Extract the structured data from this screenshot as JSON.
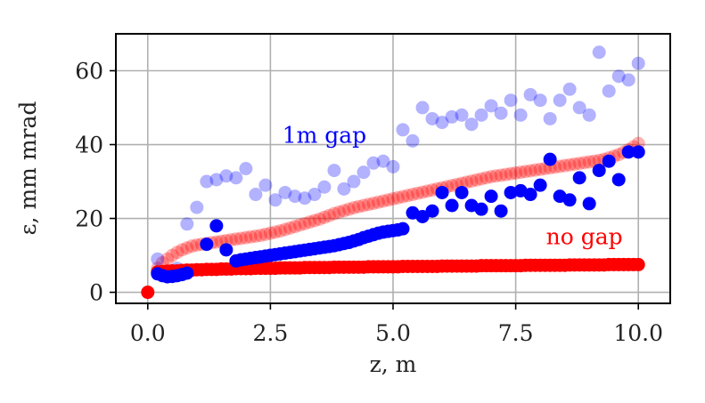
{
  "chart_data": {
    "type": "scatter",
    "title": "",
    "xlabel": "z, m",
    "ylabel": "ε, mm mrad",
    "xlim": [
      -0.65,
      10.65
    ],
    "ylim": [
      -3,
      70
    ],
    "xticks": [
      0.0,
      2.5,
      5.0,
      7.5,
      10.0
    ],
    "xtick_labels": [
      "0.0",
      "2.5",
      "5.0",
      "7.5",
      "10.0"
    ],
    "yticks": [
      0,
      20,
      40,
      60
    ],
    "ytick_labels": [
      "0",
      "20",
      "40",
      "60"
    ],
    "grid": true,
    "annotations": [
      {
        "text": "1m gap",
        "x": 3.6,
        "y": 40.5,
        "color": "#0000ff"
      },
      {
        "text": "no gap",
        "x": 8.9,
        "y": 13,
        "color": "#ff0000"
      }
    ],
    "series": [
      {
        "name": "no gap",
        "color": "#ff0000",
        "alpha": 1.0,
        "x": [
          0.0,
          0.2,
          0.3,
          0.4,
          0.5,
          0.6,
          0.7,
          0.8,
          0.9,
          1.0,
          1.1,
          1.2,
          1.3,
          1.4,
          1.5,
          1.6,
          1.7,
          1.8,
          1.9,
          2.0,
          2.1,
          2.2,
          2.3,
          2.4,
          2.5,
          2.6,
          2.7,
          2.8,
          2.9,
          3.0,
          3.1,
          3.2,
          3.3,
          3.4,
          3.5,
          3.6,
          3.7,
          3.8,
          3.9,
          4.0,
          4.1,
          4.2,
          4.3,
          4.4,
          4.5,
          4.6,
          4.7,
          4.8,
          4.9,
          5.0,
          5.1,
          5.2,
          5.3,
          5.4,
          5.5,
          5.6,
          5.7,
          5.8,
          5.9,
          6.0,
          6.1,
          6.2,
          6.3,
          6.4,
          6.5,
          6.6,
          6.7,
          6.8,
          6.9,
          7.0,
          7.1,
          7.2,
          7.3,
          7.4,
          7.5,
          7.6,
          7.7,
          7.8,
          7.9,
          8.0,
          8.1,
          8.2,
          8.3,
          8.4,
          8.5,
          8.6,
          8.7,
          8.8,
          8.9,
          9.0,
          9.1,
          9.2,
          9.3,
          9.4,
          9.5,
          9.6,
          9.7,
          9.8,
          9.9,
          10.0
        ],
        "y": [
          0.0,
          5.5,
          5.6,
          5.7,
          5.8,
          5.8,
          5.9,
          6.0,
          6.0,
          6.1,
          6.1,
          6.2,
          6.2,
          6.2,
          6.3,
          6.3,
          6.3,
          6.4,
          6.4,
          6.4,
          6.4,
          6.5,
          6.5,
          6.5,
          6.5,
          6.5,
          6.6,
          6.6,
          6.6,
          6.6,
          6.6,
          6.7,
          6.7,
          6.7,
          6.7,
          6.7,
          6.7,
          6.8,
          6.8,
          6.8,
          6.8,
          6.8,
          6.8,
          6.8,
          6.9,
          6.9,
          6.9,
          6.9,
          6.9,
          6.9,
          6.9,
          7.0,
          7.0,
          7.0,
          7.0,
          7.0,
          7.0,
          7.0,
          7.0,
          7.1,
          7.1,
          7.1,
          7.1,
          7.1,
          7.1,
          7.1,
          7.1,
          7.2,
          7.2,
          7.2,
          7.2,
          7.2,
          7.2,
          7.2,
          7.2,
          7.2,
          7.3,
          7.3,
          7.3,
          7.3,
          7.3,
          7.3,
          7.3,
          7.3,
          7.3,
          7.4,
          7.4,
          7.4,
          7.4,
          7.4,
          7.4,
          7.4,
          7.4,
          7.5,
          7.5,
          7.5,
          7.5,
          7.5,
          7.5,
          7.5
        ]
      },
      {
        "name": "no gap (faint)",
        "color": "#ff0000",
        "alpha": 0.3,
        "x": [
          0.2,
          0.3,
          0.4,
          0.5,
          0.6,
          0.7,
          0.8,
          0.9,
          1.0,
          1.1,
          1.2,
          1.3,
          1.4,
          1.5,
          1.6,
          1.7,
          1.8,
          1.9,
          2.0,
          2.1,
          2.2,
          2.3,
          2.4,
          2.5,
          2.6,
          2.7,
          2.8,
          2.9,
          3.0,
          3.1,
          3.2,
          3.3,
          3.4,
          3.5,
          3.6,
          3.7,
          3.8,
          3.9,
          4.0,
          4.1,
          4.2,
          4.3,
          4.4,
          4.5,
          4.6,
          4.7,
          4.8,
          4.9,
          5.0,
          5.1,
          5.2,
          5.3,
          5.4,
          5.5,
          5.6,
          5.7,
          5.8,
          5.9,
          6.0,
          6.1,
          6.2,
          6.3,
          6.4,
          6.5,
          6.6,
          6.7,
          6.8,
          6.9,
          7.0,
          7.1,
          7.2,
          7.3,
          7.4,
          7.5,
          7.6,
          7.7,
          7.8,
          7.9,
          8.0,
          8.1,
          8.2,
          8.3,
          8.4,
          8.5,
          8.6,
          8.7,
          8.8,
          8.9,
          9.0,
          9.1,
          9.2,
          9.3,
          9.4,
          9.5,
          9.6,
          9.7,
          9.8,
          9.9,
          10.0
        ],
        "y": [
          6.5,
          8.0,
          9.0,
          10.0,
          10.8,
          11.5,
          12.0,
          12.5,
          12.8,
          13.0,
          13.2,
          13.4,
          13.6,
          13.8,
          14.0,
          14.2,
          14.4,
          14.6,
          14.8,
          15.0,
          15.2,
          15.4,
          15.7,
          16.0,
          16.3,
          16.6,
          17.0,
          17.4,
          17.8,
          18.2,
          18.6,
          19.0,
          19.4,
          19.8,
          20.3,
          20.8,
          21.3,
          21.7,
          22.1,
          22.5,
          22.9,
          23.2,
          23.5,
          23.8,
          24.1,
          24.4,
          24.7,
          25.0,
          25.3,
          25.6,
          25.9,
          26.2,
          26.5,
          26.8,
          27.1,
          27.4,
          27.7,
          28.0,
          28.3,
          28.6,
          28.9,
          29.2,
          29.5,
          29.8,
          30.1,
          30.4,
          30.7,
          31.0,
          31.3,
          31.5,
          31.7,
          31.9,
          32.1,
          32.3,
          32.5,
          32.7,
          32.9,
          33.1,
          33.3,
          33.5,
          33.7,
          33.9,
          34.1,
          34.3,
          34.5,
          34.7,
          34.9,
          35.1,
          35.3,
          35.5,
          35.7,
          36.0,
          36.4,
          36.8,
          37.3,
          37.9,
          38.6,
          39.4,
          40.3
        ]
      },
      {
        "name": "1m gap",
        "color": "#0000ff",
        "alpha": 1.0,
        "x": [
          0.2,
          0.3,
          0.4,
          0.5,
          0.6,
          0.7,
          0.8,
          1.2,
          1.4,
          1.6,
          1.8,
          1.9,
          2.0,
          2.1,
          2.2,
          2.3,
          2.4,
          2.5,
          2.6,
          2.7,
          2.8,
          2.9,
          3.0,
          3.1,
          3.2,
          3.3,
          3.4,
          3.5,
          3.6,
          3.7,
          3.8,
          3.9,
          4.0,
          4.1,
          4.2,
          4.3,
          4.4,
          4.5,
          4.6,
          4.7,
          4.8,
          4.9,
          5.0,
          5.1,
          5.2,
          5.4,
          5.6,
          5.8,
          6.0,
          6.2,
          6.4,
          6.6,
          6.8,
          7.0,
          7.2,
          7.4,
          7.6,
          7.8,
          8.0,
          8.2,
          8.4,
          8.6,
          8.8,
          9.0,
          9.2,
          9.4,
          9.6,
          9.8,
          10.0
        ],
        "y": [
          5.0,
          4.5,
          4.2,
          4.3,
          4.5,
          4.8,
          5.2,
          13.0,
          18.0,
          11.5,
          8.5,
          8.8,
          9.0,
          9.2,
          9.4,
          9.6,
          9.8,
          10.0,
          10.2,
          10.4,
          10.6,
          10.8,
          11.0,
          11.2,
          11.4,
          11.6,
          11.8,
          12.0,
          12.2,
          12.4,
          12.6,
          12.9,
          13.2,
          13.5,
          13.9,
          14.3,
          14.8,
          15.2,
          15.6,
          16.0,
          16.3,
          16.5,
          16.7,
          16.9,
          17.2,
          21.5,
          20.5,
          22.0,
          27.0,
          23.5,
          27.0,
          23.5,
          22.5,
          26.0,
          22.0,
          27.0,
          27.5,
          26.5,
          29.0,
          36.0,
          26.0,
          25.0,
          31.0,
          24.0,
          33.0,
          35.5,
          30.5,
          38.0,
          38.0
        ]
      },
      {
        "name": "1m gap (faint)",
        "color": "#0000ff",
        "alpha": 0.3,
        "x": [
          0.2,
          0.6,
          0.8,
          1.0,
          1.2,
          1.4,
          1.6,
          1.8,
          2.0,
          2.2,
          2.4,
          2.6,
          2.8,
          3.0,
          3.2,
          3.4,
          3.6,
          3.8,
          4.0,
          4.2,
          4.4,
          4.6,
          4.8,
          5.0,
          5.2,
          5.4,
          5.6,
          5.8,
          6.0,
          6.2,
          6.4,
          6.6,
          6.8,
          7.0,
          7.2,
          7.4,
          7.6,
          7.8,
          8.0,
          8.2,
          8.4,
          8.6,
          8.8,
          9.0,
          9.2,
          9.4,
          9.6,
          9.8,
          10.0
        ],
        "y": [
          9.0,
          6.5,
          18.5,
          23.0,
          30.0,
          30.5,
          31.5,
          31.0,
          33.5,
          26.5,
          29.0,
          25.0,
          27.0,
          26.0,
          25.5,
          26.5,
          28.5,
          33.0,
          28.0,
          30.0,
          32.5,
          35.0,
          35.5,
          34.0,
          44.0,
          41.0,
          50.0,
          47.0,
          46.0,
          47.5,
          48.0,
          45.5,
          48.0,
          50.5,
          48.5,
          52.0,
          48.0,
          53.5,
          52.0,
          47.0,
          52.0,
          55.0,
          50.0,
          48.0,
          65.0,
          54.5,
          58.5,
          57.5,
          62.0
        ]
      }
    ]
  }
}
